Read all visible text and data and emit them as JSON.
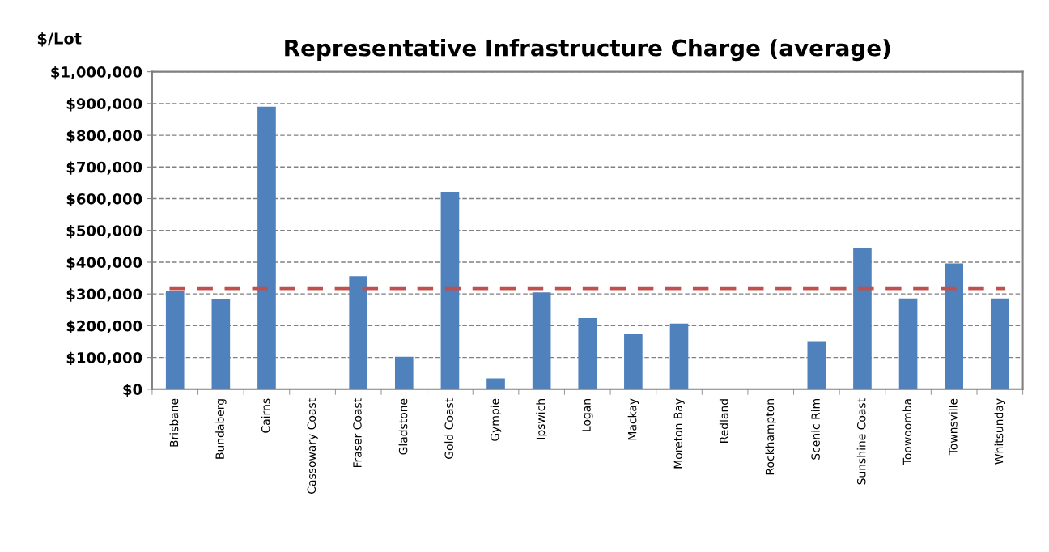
{
  "chart_data": {
    "type": "bar",
    "title": "Representative Infrastructure Charge (average)",
    "ylabel": "$/Lot",
    "categories": [
      "Brisbane",
      "Bundaberg",
      "Cairns",
      "Cassowary Coast",
      "Fraser Coast",
      "Gladstone",
      "Gold Coast",
      "Gympie",
      "Ipswich",
      "Logan",
      "Mackay",
      "Moreton Bay",
      "Redland",
      "Rockhampton",
      "Scenic Rim",
      "Sunshine Coast",
      "Toowoomba",
      "Townsville",
      "Whitsunday"
    ],
    "values": [
      310000,
      283000,
      890000,
      null,
      356000,
      102000,
      622000,
      34000,
      305000,
      224000,
      173000,
      207000,
      null,
      null,
      151000,
      445000,
      286000,
      396000,
      286000
    ],
    "color": "#4f81bd",
    "ylim": [
      0,
      1000000
    ],
    "yticks": [
      {
        "value": 0,
        "label": "$0"
      },
      {
        "value": 100000,
        "label": "$100,000"
      },
      {
        "value": 200000,
        "label": "$200,000"
      },
      {
        "value": 300000,
        "label": "$300,000"
      },
      {
        "value": 400000,
        "label": "$400,000"
      },
      {
        "value": 500000,
        "label": "$500,000"
      },
      {
        "value": 600000,
        "label": "$600,000"
      },
      {
        "value": 700000,
        "label": "$700,000"
      },
      {
        "value": 800000,
        "label": "$800,000"
      },
      {
        "value": 900000,
        "label": "$900,000"
      },
      {
        "value": 1000000,
        "label": "$1,000,000"
      }
    ],
    "grid": "y",
    "ref_lines": [
      {
        "axis": "y",
        "value": 318000,
        "color": "#c0504d",
        "line_style": "dashed"
      }
    ]
  }
}
